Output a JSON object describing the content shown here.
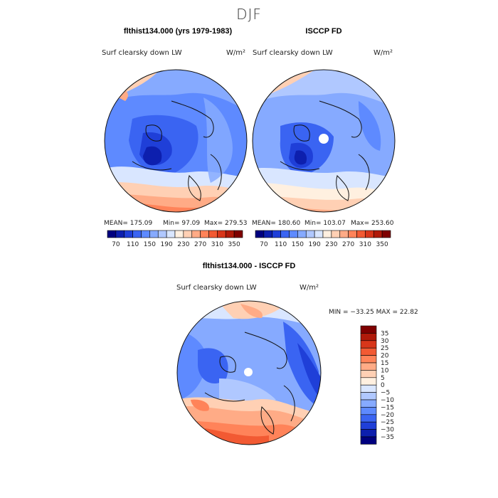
{
  "season": "DJF",
  "panels": [
    {
      "title": "flthist134.000 (yrs 1979-1983)",
      "var_label": "Surf clearsky down LW",
      "units": "W/m²",
      "mean_text": "MEAN= 175.09",
      "min_text": "Min= 97.09",
      "max_text": "Max= 279.53"
    },
    {
      "title": "ISCCP FD",
      "var_label": "Surf clearsky down LW",
      "units": "W/m²",
      "mean_text": "MEAN= 180.60",
      "min_text": "Min= 103.07",
      "max_text": "Max= 253.60"
    }
  ],
  "top_colorbar": {
    "labels": [
      "70",
      "110",
      "150",
      "190",
      "230",
      "270",
      "310",
      "350"
    ],
    "colors": [
      "#00007f",
      "#0d1fae",
      "#1f3fd8",
      "#3a64f2",
      "#5e8aff",
      "#86aaff",
      "#b0c8ff",
      "#d9e6ff",
      "#fff0e0",
      "#ffd0b4",
      "#ffab86",
      "#ff8359",
      "#f25a33",
      "#d8361a",
      "#b01a0a",
      "#7f0000"
    ]
  },
  "diff": {
    "title": "flthist134.000 - ISCCP FD",
    "var_label": "Surf clearsky down LW",
    "units": "W/m²",
    "stats_text": "MIN = −33.25 MAX =  22.82",
    "colorbar_labels": [
      "35",
      "30",
      "25",
      "20",
      "15",
      "10",
      "5",
      "0",
      "−5",
      "−10",
      "−15",
      "−20",
      "−25",
      "−30",
      "−35"
    ],
    "colorbar_colors": [
      "#7f0000",
      "#b01a0a",
      "#d8361a",
      "#f25a33",
      "#ff8359",
      "#ffab86",
      "#ffd0b4",
      "#fff0e0",
      "#d9e6ff",
      "#b0c8ff",
      "#86aaff",
      "#5e8aff",
      "#3a64f2",
      "#1f3fd8",
      "#0d1fae",
      "#00007f"
    ]
  }
}
